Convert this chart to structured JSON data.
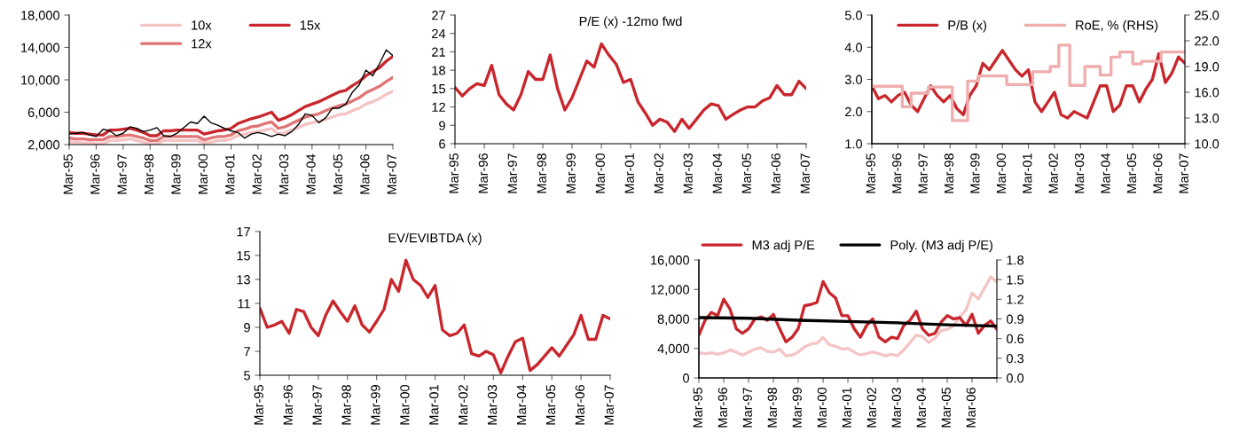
{
  "chart_data": [
    {
      "type": "line",
      "x": [
        "1995-03",
        "1995-06",
        "1995-09",
        "1995-12",
        "1996-03",
        "1996-06",
        "1996-09",
        "1996-12",
        "1997-03",
        "1997-06",
        "1997-09",
        "1997-12",
        "1998-03",
        "1998-06",
        "1998-09",
        "1998-12",
        "1999-03",
        "1999-06",
        "1999-09",
        "1999-12",
        "2000-03",
        "2000-06",
        "2000-09",
        "2000-12",
        "2001-03",
        "2001-06",
        "2001-09",
        "2001-12",
        "2002-03",
        "2002-06",
        "2002-09",
        "2002-12",
        "2003-03",
        "2003-06",
        "2003-09",
        "2003-12",
        "2004-03",
        "2004-06",
        "2004-09",
        "2004-12",
        "2005-03",
        "2005-06",
        "2005-09",
        "2005-12",
        "2006-03",
        "2006-06",
        "2006-09",
        "2006-12",
        "2007-03"
      ],
      "xlim": [
        "1995-03",
        "2007-03"
      ],
      "xticks": [
        {
          "value": "1995-03",
          "label": "Mar-95"
        },
        {
          "value": "1996-03",
          "label": "Mar-96"
        },
        {
          "value": "1997-03",
          "label": "Mar-97"
        },
        {
          "value": "1998-03",
          "label": "Mar-98"
        },
        {
          "value": "1999-03",
          "label": "Mar-99"
        },
        {
          "value": "2000-03",
          "label": "Mar-00"
        },
        {
          "value": "2001-03",
          "label": "Mar-01"
        },
        {
          "value": "2002-03",
          "label": "Mar-02"
        },
        {
          "value": "2003-03",
          "label": "Mar-03"
        },
        {
          "value": "2004-03",
          "label": "Mar-04"
        },
        {
          "value": "2005-03",
          "label": "Mar-05"
        },
        {
          "value": "2006-03",
          "label": "Mar-06"
        },
        {
          "value": "2007-03",
          "label": "Mar-07"
        }
      ],
      "ylim": [
        2000,
        18000
      ],
      "yticks": [
        {
          "value": 2000,
          "label": "2,000"
        },
        {
          "value": 6000,
          "label": "6,000"
        },
        {
          "value": 10000,
          "label": "10,000"
        },
        {
          "value": 14000,
          "label": "14,000"
        },
        {
          "value": 18000,
          "label": "18,000"
        }
      ],
      "legend": "top",
      "series": [
        {
          "color": "#000000",
          "values": [
            3300,
            3400,
            3500,
            3200,
            3000,
            3900,
            3700,
            3100,
            3400,
            4200,
            4000,
            3600,
            3800,
            4100,
            3100,
            3000,
            3400,
            4100,
            4800,
            4600,
            5500,
            4700,
            4400,
            4000,
            3700,
            3500,
            2800,
            3300,
            3500,
            3300,
            3000,
            3300,
            3100,
            3600,
            4500,
            5800,
            5600,
            4700,
            5300,
            6500,
            6500,
            7000,
            8500,
            9400,
            11200,
            10500,
            12000,
            13700,
            13000
          ]
        },
        {
          "name": "10x",
          "color": "#f5c3c3",
          "values": [
            2300,
            2300,
            2200,
            2200,
            2100,
            2100,
            2500,
            2500,
            2600,
            2700,
            2500,
            2300,
            2100,
            2100,
            2500,
            2500,
            2500,
            2500,
            2500,
            2500,
            2200,
            2300,
            2500,
            2500,
            2700,
            3100,
            3300,
            3500,
            3600,
            3800,
            4000,
            3300,
            3500,
            3800,
            4100,
            4500,
            4700,
            4900,
            5100,
            5400,
            5700,
            5800,
            6200,
            6500,
            7000,
            7300,
            7700,
            8200,
            8600
          ]
        },
        {
          "name": "12x",
          "color": "#e07575",
          "values": [
            2800,
            2700,
            2700,
            2600,
            2600,
            2600,
            3000,
            3000,
            3100,
            3200,
            3000,
            2800,
            2500,
            2500,
            3000,
            3000,
            3000,
            3000,
            3000,
            3000,
            2600,
            2800,
            3000,
            3000,
            3200,
            3700,
            3900,
            4200,
            4300,
            4600,
            4800,
            4000,
            4200,
            4600,
            5000,
            5400,
            5600,
            5800,
            6200,
            6500,
            6800,
            7000,
            7400,
            7800,
            8400,
            8800,
            9200,
            9800,
            10300
          ]
        },
        {
          "name": "15x",
          "color": "#c8262c",
          "values": [
            3500,
            3400,
            3400,
            3300,
            3200,
            3200,
            3800,
            3800,
            3900,
            4000,
            3800,
            3500,
            3100,
            3100,
            3700,
            3700,
            3800,
            3800,
            3800,
            3800,
            3300,
            3500,
            3700,
            3800,
            4000,
            4600,
            4900,
            5200,
            5400,
            5700,
            6000,
            5000,
            5300,
            5700,
            6200,
            6700,
            7000,
            7300,
            7700,
            8100,
            8500,
            8700,
            9300,
            9800,
            10500,
            11000,
            11500,
            12300,
            12900
          ]
        }
      ]
    },
    {
      "type": "line",
      "title": "P/E (x) -12mo fwd",
      "x": [
        "1995-03",
        "1995-06",
        "1995-09",
        "1995-12",
        "1996-03",
        "1996-06",
        "1996-09",
        "1996-12",
        "1997-03",
        "1997-06",
        "1997-09",
        "1997-12",
        "1998-03",
        "1998-06",
        "1998-09",
        "1998-12",
        "1999-03",
        "1999-06",
        "1999-09",
        "1999-12",
        "2000-03",
        "2000-06",
        "2000-09",
        "2000-12",
        "2001-03",
        "2001-06",
        "2001-09",
        "2001-12",
        "2002-03",
        "2002-06",
        "2002-09",
        "2002-12",
        "2003-03",
        "2003-06",
        "2003-09",
        "2003-12",
        "2004-03",
        "2004-06",
        "2004-09",
        "2004-12",
        "2005-03",
        "2005-06",
        "2005-09",
        "2005-12",
        "2006-03",
        "2006-06",
        "2006-09",
        "2006-12",
        "2007-03"
      ],
      "xlim": [
        "1995-03",
        "2007-03"
      ],
      "xticks": [
        {
          "value": "1995-03",
          "label": "Mar-95"
        },
        {
          "value": "1996-03",
          "label": "Mar-96"
        },
        {
          "value": "1997-03",
          "label": "Mar-97"
        },
        {
          "value": "1998-03",
          "label": "Mar-98"
        },
        {
          "value": "1999-03",
          "label": "Mar-99"
        },
        {
          "value": "2000-03",
          "label": "Mar-00"
        },
        {
          "value": "2001-03",
          "label": "Mar-01"
        },
        {
          "value": "2002-03",
          "label": "Mar-02"
        },
        {
          "value": "2003-03",
          "label": "Mar-03"
        },
        {
          "value": "2004-03",
          "label": "Mar-04"
        },
        {
          "value": "2005-03",
          "label": "Mar-05"
        },
        {
          "value": "2006-03",
          "label": "Mar-06"
        },
        {
          "value": "2007-03",
          "label": "Mar-07"
        }
      ],
      "ylim": [
        6,
        27
      ],
      "yticks": [
        6,
        9,
        12,
        15,
        18,
        21,
        24,
        27
      ],
      "series": [
        {
          "color": "#c8262c",
          "values": [
            15.2,
            13.8,
            15,
            15.8,
            15.5,
            18.8,
            14,
            12.5,
            11.5,
            14,
            17.8,
            16.5,
            16.5,
            20.5,
            15,
            11.5,
            13.5,
            16.5,
            19.5,
            18.5,
            22.3,
            20.5,
            19,
            16,
            16.5,
            12.8,
            11,
            9,
            10,
            9.5,
            8,
            10,
            8.5,
            10,
            11.5,
            12.5,
            12.2,
            10,
            10.8,
            11.5,
            12,
            12,
            13,
            13.5,
            15.5,
            14,
            14,
            16.2,
            15
          ]
        }
      ]
    },
    {
      "type": "line",
      "x": [
        "1995-03",
        "1995-06",
        "1995-09",
        "1995-12",
        "1996-03",
        "1996-06",
        "1996-09",
        "1996-12",
        "1997-03",
        "1997-06",
        "1997-09",
        "1997-12",
        "1998-03",
        "1998-06",
        "1998-09",
        "1998-12",
        "1999-03",
        "1999-06",
        "1999-09",
        "1999-12",
        "2000-03",
        "2000-06",
        "2000-09",
        "2000-12",
        "2001-03",
        "2001-06",
        "2001-09",
        "2001-12",
        "2002-03",
        "2002-06",
        "2002-09",
        "2002-12",
        "2003-03",
        "2003-06",
        "2003-09",
        "2003-12",
        "2004-03",
        "2004-06",
        "2004-09",
        "2004-12",
        "2005-03",
        "2005-06",
        "2005-09",
        "2005-12",
        "2006-03",
        "2006-06",
        "2006-09",
        "2006-12",
        "2007-03"
      ],
      "xlim": [
        "1995-03",
        "2007-03"
      ],
      "xticks": [
        {
          "value": "1995-03",
          "label": "Mar-95"
        },
        {
          "value": "1996-03",
          "label": "Mar-96"
        },
        {
          "value": "1997-03",
          "label": "Mar-97"
        },
        {
          "value": "1998-03",
          "label": "Mar-98"
        },
        {
          "value": "1999-03",
          "label": "Mar-99"
        },
        {
          "value": "2000-03",
          "label": "Mar-00"
        },
        {
          "value": "2001-03",
          "label": "Mar-01"
        },
        {
          "value": "2002-03",
          "label": "Mar-02"
        },
        {
          "value": "2003-03",
          "label": "Mar-03"
        },
        {
          "value": "2004-03",
          "label": "Mar-04"
        },
        {
          "value": "2005-03",
          "label": "Mar-05"
        },
        {
          "value": "2006-03",
          "label": "Mar-06"
        },
        {
          "value": "2007-03",
          "label": "Mar-07"
        }
      ],
      "ylim": [
        1,
        5
      ],
      "yticks": [
        {
          "value": 1,
          "label": "1.0"
        },
        {
          "value": 2,
          "label": "2.0"
        },
        {
          "value": 3,
          "label": "3.0"
        },
        {
          "value": 4,
          "label": "4.0"
        },
        {
          "value": 5,
          "label": "5.0"
        }
      ],
      "y2lim": [
        10,
        25
      ],
      "y2ticks": [
        {
          "value": 10,
          "label": "10.0"
        },
        {
          "value": 13,
          "label": "13.0"
        },
        {
          "value": 16,
          "label": "16.0"
        },
        {
          "value": 19,
          "label": "19.0"
        },
        {
          "value": 22,
          "label": "22.0"
        },
        {
          "value": 25,
          "label": "25.0"
        }
      ],
      "legend": "top",
      "series": [
        {
          "name": "P/B (x)",
          "color": "#c8262c",
          "values": [
            2.8,
            2.4,
            2.5,
            2.3,
            2.5,
            2.6,
            2.2,
            2.0,
            2.4,
            2.8,
            2.5,
            2.3,
            2.5,
            2.1,
            1.9,
            2.5,
            2.8,
            3.5,
            3.3,
            3.6,
            3.9,
            3.6,
            3.3,
            3.1,
            3.3,
            2.3,
            2.0,
            2.3,
            2.6,
            1.9,
            1.8,
            2.0,
            1.9,
            1.8,
            2.3,
            2.8,
            2.8,
            2.0,
            2.2,
            2.8,
            2.8,
            2.3,
            2.7,
            3.0,
            3.8,
            2.9,
            3.2,
            3.7,
            3.5
          ]
        },
        {
          "name": "RoE, % (RHS)",
          "type": "step",
          "axis": "y2",
          "color": "#f0adad",
          "x": [
            "1995-03",
            "1996-05",
            "1996-09",
            "1997-05",
            "1998-04",
            "1998-11",
            "1999-04",
            "2000-05",
            "2001-05",
            "2002-01",
            "2002-05",
            "2002-10",
            "2003-05",
            "2003-12",
            "2004-05",
            "2004-09",
            "2005-03",
            "2005-07",
            "2006-04",
            "2007-03"
          ],
          "values": [
            16.7,
            14.3,
            15.9,
            16.6,
            12.7,
            17.3,
            17.9,
            16.9,
            18.4,
            19.0,
            21.5,
            16.8,
            19.0,
            18.0,
            20.1,
            20.7,
            19.3,
            19.6,
            20.7,
            20.7
          ]
        }
      ]
    },
    {
      "type": "line",
      "title": "EV/EVIBTDA (x)",
      "x": [
        "1995-03",
        "1995-06",
        "1995-09",
        "1995-12",
        "1996-03",
        "1996-06",
        "1996-09",
        "1996-12",
        "1997-03",
        "1997-06",
        "1997-09",
        "1997-12",
        "1998-03",
        "1998-06",
        "1998-09",
        "1998-12",
        "1999-03",
        "1999-06",
        "1999-09",
        "1999-12",
        "2000-03",
        "2000-06",
        "2000-09",
        "2000-12",
        "2001-03",
        "2001-06",
        "2001-09",
        "2001-12",
        "2002-03",
        "2002-06",
        "2002-09",
        "2002-12",
        "2003-03",
        "2003-06",
        "2003-09",
        "2003-12",
        "2004-03",
        "2004-06",
        "2004-09",
        "2004-12",
        "2005-03",
        "2005-06",
        "2005-09",
        "2005-12",
        "2006-03",
        "2006-06",
        "2006-09",
        "2006-12",
        "2007-03"
      ],
      "xlim": [
        "1995-03",
        "2007-03"
      ],
      "xticks": [
        {
          "value": "1995-03",
          "label": "Mar-95"
        },
        {
          "value": "1996-03",
          "label": "Mar-96"
        },
        {
          "value": "1997-03",
          "label": "Mar-97"
        },
        {
          "value": "1998-03",
          "label": "Mar-98"
        },
        {
          "value": "1999-03",
          "label": "Mar-99"
        },
        {
          "value": "2000-03",
          "label": "Mar-00"
        },
        {
          "value": "2001-03",
          "label": "Mar-01"
        },
        {
          "value": "2002-03",
          "label": "Mar-02"
        },
        {
          "value": "2003-03",
          "label": "Mar-03"
        },
        {
          "value": "2004-03",
          "label": "Mar-04"
        },
        {
          "value": "2005-03",
          "label": "Mar-05"
        },
        {
          "value": "2006-03",
          "label": "Mar-06"
        },
        {
          "value": "2007-03",
          "label": "Mar-07"
        }
      ],
      "ylim": [
        5,
        17
      ],
      "yticks": [
        5,
        7,
        9,
        11,
        13,
        15,
        17
      ],
      "series": [
        {
          "color": "#c8262c",
          "values": [
            10.6,
            9.0,
            9.2,
            9.5,
            8.5,
            10.5,
            10.3,
            9.0,
            8.3,
            10.0,
            11.2,
            10.3,
            9.5,
            10.8,
            9.2,
            8.6,
            9.5,
            10.5,
            13.0,
            12.0,
            14.6,
            13.0,
            12.5,
            11.5,
            12.5,
            8.8,
            8.3,
            8.5,
            9.2,
            6.8,
            6.6,
            7.0,
            6.7,
            5.2,
            6.6,
            7.8,
            8.1,
            5.4,
            5.9,
            6.6,
            7.3,
            6.6,
            7.5,
            8.4,
            10.0,
            8.0,
            8.0,
            10.0,
            9.7
          ]
        }
      ]
    },
    {
      "type": "line",
      "x": [
        "1995-03",
        "1995-06",
        "1995-09",
        "1995-12",
        "1996-03",
        "1996-06",
        "1996-09",
        "1996-12",
        "1997-03",
        "1997-06",
        "1997-09",
        "1997-12",
        "1998-03",
        "1998-06",
        "1998-09",
        "1998-12",
        "1999-03",
        "1999-06",
        "1999-09",
        "1999-12",
        "2000-03",
        "2000-06",
        "2000-09",
        "2000-12",
        "2001-03",
        "2001-06",
        "2001-09",
        "2001-12",
        "2002-03",
        "2002-06",
        "2002-09",
        "2002-12",
        "2003-03",
        "2003-06",
        "2003-09",
        "2003-12",
        "2004-03",
        "2004-06",
        "2004-09",
        "2004-12",
        "2005-03",
        "2005-06",
        "2005-09",
        "2005-12",
        "2006-03",
        "2006-06",
        "2006-09",
        "2006-12",
        "2007-03"
      ],
      "xlim": [
        "1995-03",
        "2007-03"
      ],
      "xticks": [
        {
          "value": "1995-03",
          "label": "Mar-95"
        },
        {
          "value": "1996-03",
          "label": "Mar-96"
        },
        {
          "value": "1997-03",
          "label": "Mar-97"
        },
        {
          "value": "1998-03",
          "label": "Mar-98"
        },
        {
          "value": "1999-03",
          "label": "Mar-99"
        },
        {
          "value": "2000-03",
          "label": "Mar-00"
        },
        {
          "value": "2001-03",
          "label": "Mar-01"
        },
        {
          "value": "2002-03",
          "label": "Mar-02"
        },
        {
          "value": "2003-03",
          "label": "Mar-03"
        },
        {
          "value": "2004-03",
          "label": "Mar-04"
        },
        {
          "value": "2005-03",
          "label": "Mar-05"
        },
        {
          "value": "2006-03",
          "label": "Mar-06"
        },
        {
          "value": "2007-03",
          "label": null
        }
      ],
      "ylim": [
        0,
        16000
      ],
      "yticks": [
        0,
        {
          "value": 4000,
          "label": "4,000"
        },
        {
          "value": 8000,
          "label": "8,000"
        },
        {
          "value": 12000,
          "label": "12,000"
        },
        {
          "value": 16000,
          "label": "16,000"
        }
      ],
      "y2lim": [
        0,
        1.8
      ],
      "y2ticks": [
        {
          "value": 0,
          "label": "0.0"
        },
        0.3,
        0.6,
        0.9,
        1.2,
        1.5,
        1.8
      ],
      "legend": "top",
      "series": [
        {
          "color": "#f5c5c5",
          "values": [
            3400,
            3300,
            3400,
            3200,
            3400,
            3800,
            3500,
            3100,
            3500,
            3900,
            4100,
            3600,
            3500,
            3900,
            3000,
            3100,
            3500,
            4200,
            4600,
            4700,
            5500,
            4500,
            4300,
            3900,
            4000,
            3500,
            3100,
            3300,
            3500,
            3300,
            3000,
            3200,
            3000,
            3800,
            4800,
            5800,
            5600,
            4800,
            5400,
            6400,
            6600,
            7000,
            8300,
            9200,
            11500,
            10700,
            12200,
            13700,
            13000
          ]
        },
        {
          "name": "M3 adj P/E",
          "axis": "y2",
          "color": "#c8262c",
          "values": [
            0.65,
            0.88,
            1.0,
            0.95,
            1.2,
            1.05,
            0.75,
            0.68,
            0.75,
            0.9,
            0.93,
            0.88,
            0.97,
            0.75,
            0.55,
            0.62,
            0.75,
            1.1,
            1.12,
            1.15,
            1.47,
            1.3,
            1.22,
            0.95,
            0.95,
            0.75,
            0.62,
            0.8,
            0.9,
            0.62,
            0.55,
            0.62,
            0.6,
            0.8,
            0.88,
            1.02,
            0.75,
            0.65,
            0.68,
            0.85,
            0.95,
            0.9,
            0.92,
            0.8,
            0.97,
            0.68,
            0.8,
            0.87,
            0.74
          ]
        },
        {
          "name": "Poly. (M3 adj P/E)",
          "axis": "y2",
          "color": "#000000",
          "x": [
            "1995-03",
            "1997-03",
            "1999-03",
            "2001-03",
            "2003-03",
            "2005-03",
            "2007-03"
          ],
          "values": [
            0.92,
            0.91,
            0.88,
            0.86,
            0.84,
            0.81,
            0.79
          ]
        }
      ]
    }
  ]
}
